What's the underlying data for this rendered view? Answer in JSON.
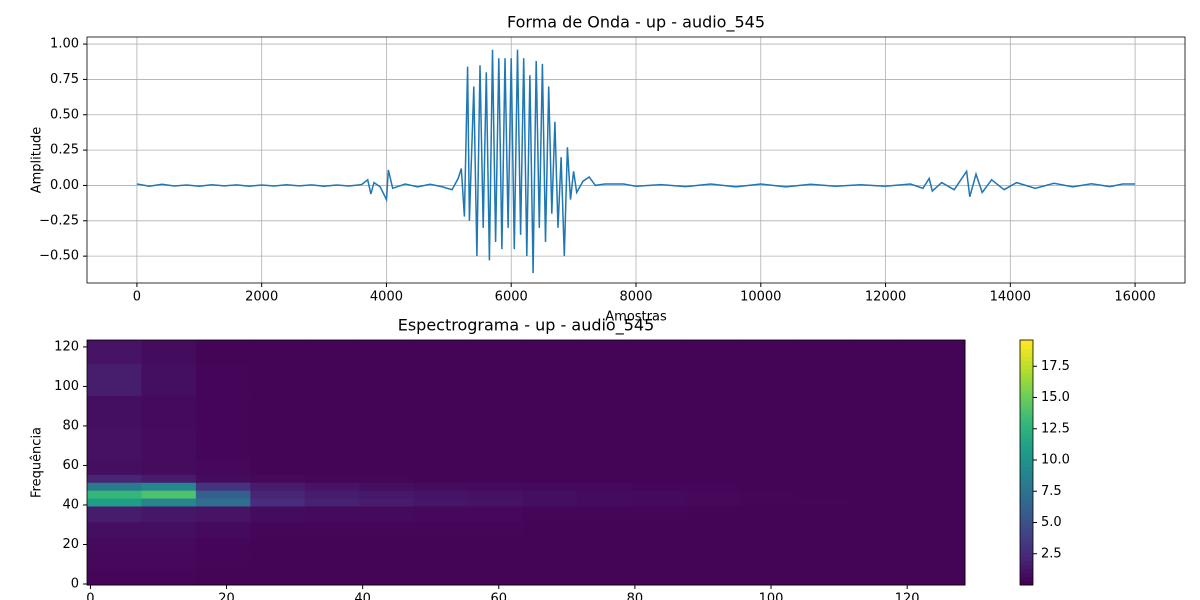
{
  "chart_data": [
    {
      "type": "line",
      "title": "Forma de Onda - up - audio_545",
      "xlabel": "Amostras",
      "ylabel": "Amplitude",
      "xlim": [
        -800,
        16800
      ],
      "ylim": [
        -0.69,
        1.05
      ],
      "grid": true,
      "xticks": [
        0,
        2000,
        4000,
        6000,
        8000,
        10000,
        12000,
        14000,
        16000
      ],
      "yticks": [
        {
          "value": -0.5,
          "label": "−0.50"
        },
        {
          "value": -0.25,
          "label": "−0.25"
        },
        {
          "value": 0,
          "label": "0.00"
        },
        0.25,
        {
          "value": 0.5,
          "label": "0.50"
        },
        0.75,
        {
          "value": 1,
          "label": "1.00"
        }
      ],
      "color": "#1f77b4",
      "x": [
        0,
        200,
        400,
        600,
        800,
        1000,
        1200,
        1400,
        1600,
        1800,
        2000,
        2200,
        2400,
        2600,
        2800,
        3000,
        3200,
        3400,
        3600,
        3700,
        3750,
        3800,
        3900,
        4000,
        4030,
        4100,
        4300,
        4500,
        4700,
        4900,
        5050,
        5150,
        5200,
        5250,
        5300,
        5330,
        5400,
        5450,
        5500,
        5550,
        5600,
        5650,
        5700,
        5750,
        5800,
        5850,
        5900,
        5950,
        6000,
        6050,
        6100,
        6150,
        6200,
        6250,
        6300,
        6350,
        6400,
        6450,
        6500,
        6550,
        6600,
        6650,
        6700,
        6750,
        6800,
        6850,
        6900,
        6950,
        7000,
        7050,
        7150,
        7250,
        7350,
        7500,
        7800,
        8000,
        8400,
        8800,
        9200,
        9600,
        10000,
        10400,
        10800,
        11200,
        11600,
        12000,
        12400,
        12600,
        12700,
        12750,
        12900,
        13100,
        13300,
        13350,
        13450,
        13550,
        13700,
        13900,
        14100,
        14400,
        14700,
        15000,
        15300,
        15600,
        15800,
        16000
      ],
      "values": [
        0.01,
        -0.005,
        0.008,
        -0.004,
        0.003,
        -0.006,
        0.005,
        -0.003,
        0.004,
        -0.005,
        0.003,
        -0.004,
        0.005,
        -0.003,
        0.004,
        -0.006,
        0.003,
        -0.004,
        0.006,
        0.04,
        -0.06,
        0.02,
        -0.01,
        -0.1,
        0.11,
        -0.02,
        0.01,
        -0.01,
        0.008,
        -0.01,
        -0.03,
        0.05,
        0.12,
        -0.22,
        0.84,
        -0.25,
        0.7,
        -0.5,
        0.85,
        -0.3,
        0.8,
        -0.53,
        0.96,
        -0.4,
        0.9,
        -0.45,
        0.9,
        -0.3,
        0.9,
        -0.45,
        0.96,
        -0.35,
        0.9,
        -0.5,
        0.78,
        -0.62,
        0.88,
        -0.3,
        0.86,
        -0.4,
        0.7,
        -0.2,
        0.45,
        -0.3,
        0.2,
        -0.5,
        0.27,
        -0.1,
        0.1,
        -0.05,
        0.03,
        0.06,
        0.0,
        0.01,
        0.01,
        -0.005,
        0.006,
        -0.008,
        0.01,
        -0.01,
        0.01,
        -0.01,
        0.008,
        -0.006,
        0.005,
        -0.005,
        0.01,
        -0.02,
        0.05,
        -0.04,
        0.02,
        -0.03,
        0.1,
        -0.08,
        0.08,
        -0.05,
        0.04,
        -0.03,
        0.02,
        -0.02,
        0.015,
        -0.01,
        0.012,
        -0.008,
        0.01,
        0.01
      ]
    },
    {
      "type": "heatmap",
      "title": "Espectrograma - up - audio_545",
      "ylabel": "Frequência",
      "xlim": [
        -0.5,
        128.5
      ],
      "ylim": [
        -0.5,
        123.5
      ],
      "xticks": [
        0,
        20,
        40,
        60,
        80,
        100,
        120
      ],
      "yticks": [
        0,
        20,
        40,
        60,
        80,
        100,
        120
      ],
      "colormap": "viridis",
      "clim": [
        0,
        19.6
      ],
      "cticks": [
        2.5,
        {
          "value": 5,
          "label": "5.0"
        },
        7.5,
        {
          "value": 10,
          "label": "10.0"
        },
        12.5,
        {
          "value": 15,
          "label": "15.0"
        },
        17.5
      ],
      "xbins": [
        -0.5,
        7.5,
        15.5,
        23.5,
        31.5,
        39.5,
        47.5,
        55.5,
        63.5,
        71.5,
        79.5,
        87.5,
        95.5,
        103.5,
        111.5,
        119.5,
        128.5
      ],
      "ybins": [
        -0.5,
        7.5,
        15.5,
        23.5,
        31.5,
        39.5,
        43.5,
        47.5,
        51.5,
        55.5,
        63.5,
        79.5,
        95.5,
        111.5,
        123.5
      ],
      "z": [
        [
          0.3,
          0.3,
          0.2,
          0.2,
          0.2,
          0.2,
          0.2,
          0.2,
          0.2,
          0.2,
          0.2,
          0.2,
          0.2,
          0.2,
          0.2,
          0.2
        ],
        [
          0.4,
          0.4,
          0.3,
          0.2,
          0.2,
          0.2,
          0.2,
          0.2,
          0.2,
          0.2,
          0.2,
          0.2,
          0.2,
          0.2,
          0.2,
          0.2
        ],
        [
          0.5,
          0.5,
          0.3,
          0.2,
          0.2,
          0.2,
          0.2,
          0.2,
          0.2,
          0.2,
          0.2,
          0.2,
          0.2,
          0.2,
          0.2,
          0.2
        ],
        [
          0.8,
          0.7,
          0.5,
          0.3,
          0.3,
          0.3,
          0.3,
          0.3,
          0.2,
          0.2,
          0.2,
          0.2,
          0.2,
          0.2,
          0.2,
          0.2
        ],
        [
          1.5,
          1.2,
          1.0,
          0.6,
          0.5,
          0.5,
          0.4,
          0.4,
          0.3,
          0.3,
          0.3,
          0.2,
          0.2,
          0.2,
          0.2,
          0.2
        ],
        [
          11,
          9,
          7,
          2.5,
          1.8,
          1.5,
          1.2,
          1.0,
          0.8,
          0.6,
          0.5,
          0.4,
          0.3,
          0.3,
          0.2,
          0.2
        ],
        [
          13,
          14,
          6,
          2,
          1.5,
          1.3,
          1.0,
          0.9,
          0.8,
          0.6,
          0.5,
          0.4,
          0.3,
          0.2,
          0.2,
          0.2
        ],
        [
          8,
          9,
          3,
          1.5,
          1.0,
          0.8,
          0.6,
          0.5,
          0.4,
          0.4,
          0.3,
          0.3,
          0.2,
          0.2,
          0.2,
          0.2
        ],
        [
          2,
          1.5,
          0.6,
          0.4,
          0.3,
          0.3,
          0.2,
          0.2,
          0.2,
          0.2,
          0.2,
          0.2,
          0.2,
          0.2,
          0.2,
          0.2
        ],
        [
          0.8,
          0.6,
          0.4,
          0.2,
          0.2,
          0.2,
          0.2,
          0.2,
          0.2,
          0.2,
          0.2,
          0.2,
          0.2,
          0.2,
          0.2,
          0.2
        ],
        [
          0.9,
          0.6,
          0.3,
          0.2,
          0.2,
          0.2,
          0.2,
          0.2,
          0.2,
          0.2,
          0.2,
          0.2,
          0.2,
          0.2,
          0.2,
          0.2
        ],
        [
          0.8,
          0.5,
          0.3,
          0.2,
          0.2,
          0.2,
          0.2,
          0.2,
          0.2,
          0.2,
          0.2,
          0.2,
          0.2,
          0.2,
          0.2,
          0.2
        ],
        [
          1.6,
          0.8,
          0.3,
          0.2,
          0.2,
          0.2,
          0.2,
          0.2,
          0.2,
          0.2,
          0.2,
          0.2,
          0.2,
          0.2,
          0.2,
          0.2
        ],
        [
          1.0,
          0.6,
          0.2,
          0.2,
          0.2,
          0.2,
          0.2,
          0.2,
          0.2,
          0.2,
          0.2,
          0.2,
          0.2,
          0.2,
          0.2,
          0.2
        ]
      ]
    }
  ]
}
